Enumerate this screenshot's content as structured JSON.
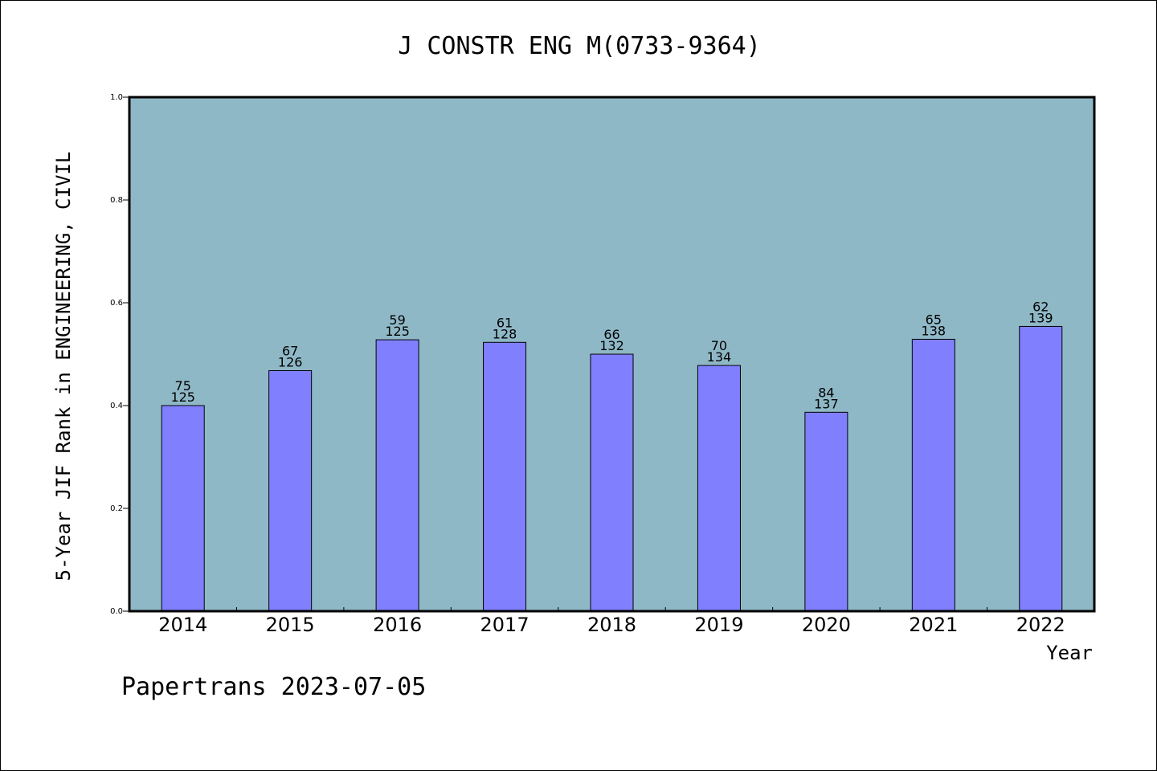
{
  "chart_data": {
    "type": "bar",
    "title": "J CONSTR ENG M(0733-9364)",
    "xlabel": "Year",
    "ylabel": "5-Year JIF Rank in ENGINEERING, CIVIL",
    "ylim": [
      0,
      1.0
    ],
    "yticks": [
      "0.0",
      "0.2",
      "0.4",
      "0.6",
      "0.8",
      "1.0"
    ],
    "categories": [
      "2014",
      "2015",
      "2016",
      "2017",
      "2018",
      "2019",
      "2020",
      "2021",
      "2022"
    ],
    "values": [
      0.4,
      0.468,
      0.528,
      0.523,
      0.5,
      0.478,
      0.387,
      0.529,
      0.554
    ],
    "rank": [
      "75",
      "67",
      "59",
      "61",
      "66",
      "70",
      "84",
      "65",
      "62"
    ],
    "total": [
      "125",
      "126",
      "125",
      "128",
      "132",
      "134",
      "137",
      "138",
      "139"
    ],
    "grid": false,
    "colors": {
      "plot_bg": "#8fb8c7",
      "bar": "#8080ff",
      "border": "#000000"
    }
  },
  "footer": "Papertrans 2023-07-05"
}
